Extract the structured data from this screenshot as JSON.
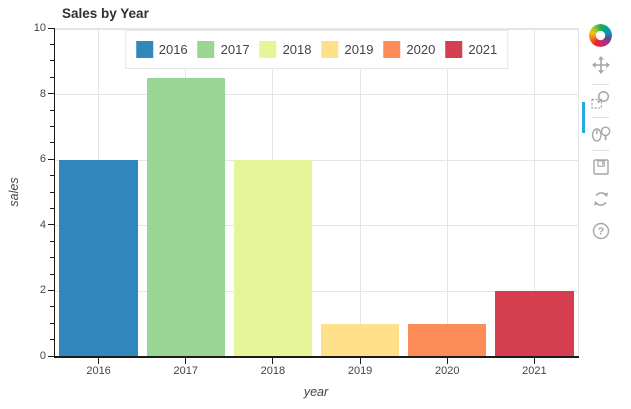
{
  "chart_data": {
    "type": "bar",
    "title": "Sales by Year",
    "xlabel": "year",
    "ylabel": "sales",
    "categories": [
      "2016",
      "2017",
      "2018",
      "2019",
      "2020",
      "2021"
    ],
    "values": [
      6,
      8.5,
      6,
      1,
      1,
      2
    ],
    "colors": [
      "#3288bd",
      "#99d594",
      "#e6f598",
      "#fee08b",
      "#fc8d59",
      "#d53e4f"
    ],
    "ylim": [
      0,
      10
    ],
    "yticks": [
      0,
      2,
      4,
      6,
      8,
      10
    ],
    "y_minor_step": 0.5,
    "bar_width_fraction": 0.9,
    "grid": true,
    "legend": {
      "position": "top_center",
      "labels": [
        "2016",
        "2017",
        "2018",
        "2019",
        "2020",
        "2021"
      ]
    }
  },
  "toolbar": {
    "orientation": "vertical",
    "active_tool": "pan",
    "active_indicator_color": "#26aae1",
    "tools": [
      {
        "id": "pan",
        "icon": "move-icon",
        "active": true
      },
      {
        "id": "box-zoom",
        "icon": "box-zoom-icon",
        "active": false
      },
      {
        "id": "wheel-zoom",
        "icon": "wheel-zoom-icon",
        "active": false
      },
      {
        "id": "save",
        "icon": "save-icon",
        "active": false
      },
      {
        "id": "reset",
        "icon": "reset-icon",
        "active": false
      },
      {
        "id": "help",
        "icon": "help-icon",
        "active": false
      }
    ]
  },
  "colors": {
    "grid_line": "#e5e5e5",
    "axis_line": "#1a1a1a",
    "tick_label_text": "#444444",
    "title_text": "#303030",
    "legend_border": "#e5e5e5",
    "toolbar_icon": "#a6a6a6"
  }
}
